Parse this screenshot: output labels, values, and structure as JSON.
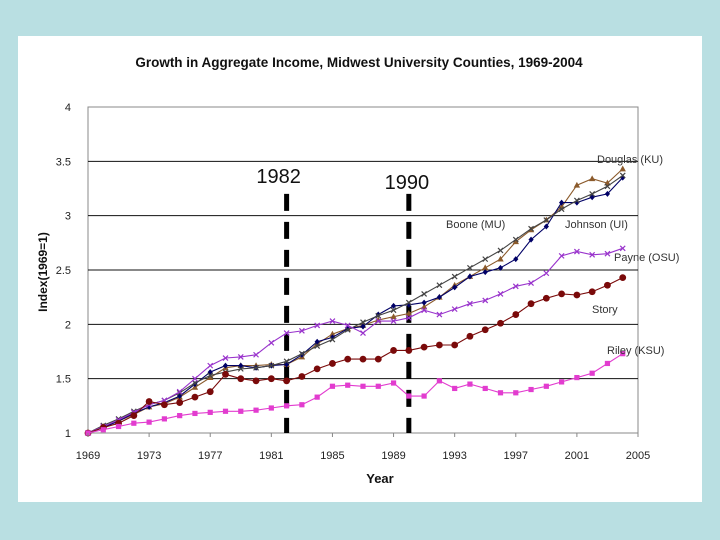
{
  "chart_data": {
    "type": "line",
    "title": "Growth in Aggregate Income, Midwest University Counties, 1969-2004",
    "xlabel": "Year",
    "ylabel": "Index(1969=1)",
    "xlim": [
      1969,
      2005
    ],
    "ylim": [
      1,
      4
    ],
    "xticks": [
      "1969",
      "1973",
      "1977",
      "1981",
      "1985",
      "1989",
      "1993",
      "1997",
      "2001",
      "2005"
    ],
    "yticks": [
      "1",
      "1.5",
      "2",
      "2.5",
      "3",
      "3.5",
      "4"
    ],
    "grid": "horizontal",
    "reference_lines": [
      {
        "year": 1982,
        "label": "1982"
      },
      {
        "year": 1990,
        "label": "1990"
      }
    ],
    "series": [
      {
        "name": "Douglas (KU)",
        "color": "#8b5a2b",
        "marker": "triangle",
        "values": [
          1.0,
          1.06,
          1.11,
          1.17,
          1.24,
          1.27,
          1.33,
          1.42,
          1.51,
          1.6,
          1.62,
          1.62,
          1.63,
          1.63,
          1.7,
          1.82,
          1.91,
          1.96,
          1.99,
          2.04,
          2.07,
          2.1,
          2.16,
          2.25,
          2.36,
          2.44,
          2.52,
          2.6,
          2.76,
          2.87,
          2.96,
          3.08,
          3.28,
          3.34,
          3.3,
          3.43
        ]
      },
      {
        "name": "Boone (MU)",
        "color": "#000066",
        "marker": "diamond",
        "values": [
          1.0,
          1.05,
          1.11,
          1.18,
          1.24,
          1.28,
          1.34,
          1.45,
          1.56,
          1.62,
          1.62,
          1.6,
          1.62,
          1.63,
          1.72,
          1.84,
          1.88,
          1.96,
          1.98,
          2.09,
          2.17,
          2.18,
          2.2,
          2.25,
          2.34,
          2.44,
          2.48,
          2.52,
          2.6,
          2.78,
          2.9,
          3.12,
          3.12,
          3.17,
          3.2,
          3.35
        ]
      },
      {
        "name": "Johnson (UI)",
        "color": "#444444",
        "marker": "x",
        "values": [
          1.0,
          1.07,
          1.13,
          1.2,
          1.26,
          1.3,
          1.37,
          1.46,
          1.53,
          1.56,
          1.59,
          1.6,
          1.62,
          1.66,
          1.73,
          1.8,
          1.86,
          1.95,
          2.02,
          2.08,
          2.13,
          2.2,
          2.28,
          2.36,
          2.44,
          2.52,
          2.6,
          2.68,
          2.78,
          2.88,
          2.96,
          3.06,
          3.14,
          3.2,
          3.27,
          3.37
        ]
      },
      {
        "name": "Payne (OSU)",
        "color": "#9933cc",
        "marker": "x",
        "values": [
          1.0,
          1.06,
          1.12,
          1.19,
          1.26,
          1.3,
          1.38,
          1.5,
          1.62,
          1.69,
          1.7,
          1.72,
          1.83,
          1.92,
          1.94,
          1.99,
          2.03,
          1.99,
          1.92,
          2.03,
          2.03,
          2.06,
          2.13,
          2.09,
          2.14,
          2.19,
          2.22,
          2.28,
          2.35,
          2.38,
          2.47,
          2.63,
          2.67,
          2.64,
          2.65,
          2.7
        ]
      },
      {
        "name": "Story",
        "color": "#7a0a0a",
        "marker": "circle",
        "values": [
          1.0,
          1.05,
          1.09,
          1.16,
          1.29,
          1.26,
          1.28,
          1.33,
          1.38,
          1.54,
          1.5,
          1.48,
          1.5,
          1.48,
          1.52,
          1.59,
          1.64,
          1.68,
          1.68,
          1.68,
          1.76,
          1.76,
          1.79,
          1.81,
          1.81,
          1.89,
          1.95,
          2.01,
          2.09,
          2.19,
          2.24,
          2.28,
          2.27,
          2.3,
          2.36,
          2.43
        ]
      },
      {
        "name": "Riley (KSU)",
        "color": "#e23ccf",
        "marker": "square",
        "values": [
          1.0,
          1.03,
          1.06,
          1.09,
          1.1,
          1.13,
          1.16,
          1.18,
          1.19,
          1.2,
          1.2,
          1.21,
          1.23,
          1.25,
          1.26,
          1.33,
          1.43,
          1.44,
          1.43,
          1.43,
          1.46,
          1.34,
          1.34,
          1.48,
          1.41,
          1.45,
          1.41,
          1.37,
          1.37,
          1.4,
          1.43,
          1.47,
          1.51,
          1.55,
          1.64,
          1.73
        ]
      }
    ],
    "series_labels": [
      {
        "name": "Douglas (KU)",
        "text": "Douglas (KU)"
      },
      {
        "name": "Boone (MU)",
        "text": "Boone (MU)"
      },
      {
        "name": "Johnson (UI)",
        "text": "Johnson (UI)"
      },
      {
        "name": "Payne (OSU)",
        "text": "Payne (OSU)"
      },
      {
        "name": "Story",
        "text": "Story"
      },
      {
        "name": "Riley (KSU)",
        "text": "Riley (KSU)"
      }
    ]
  }
}
